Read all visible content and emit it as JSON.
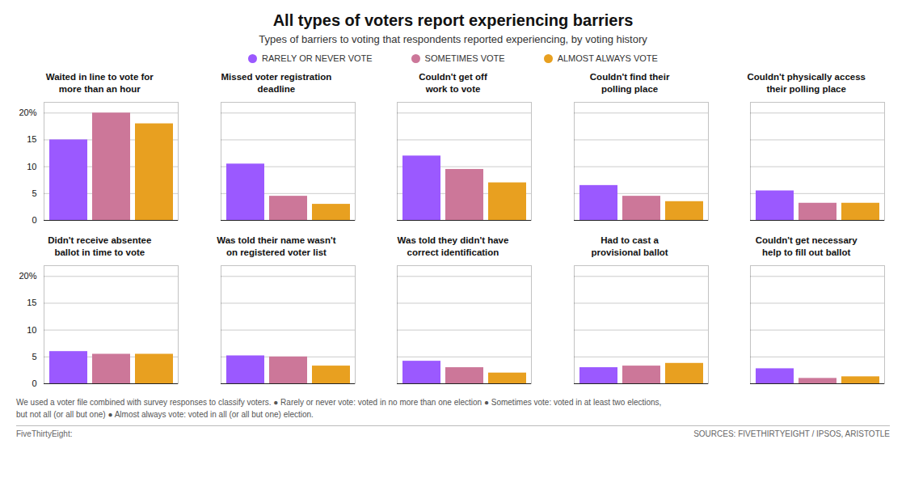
{
  "title": "All types of voters report experiencing barriers",
  "subtitle": "Types of barriers to voting that respondents reported experiencing, by voting history",
  "legend": "top",
  "footnote": [
    "We used a voter file combined with survey responses to classify voters. ● Rarely or never vote: voted in no more than one election ● Sometimes vote: voted in at least two elections,",
    "but not all (or all but one) ● Almost always vote: voted in all (or all but one) election."
  ],
  "sources": [
    "FiveThirtyEight:",
    "SOURCES: FIVETHIRTYEIGHT / IPSOS, ARISTOTLE"
  ],
  "chart_data": [
    {
      "type": "bar",
      "title": "Waited in line to vote for\nmore than an hour",
      "categories": [
        null
      ],
      "series": [
        {
          "name": "RARELY OR NEVER VOTE",
          "color": "#9b59ff",
          "values": [
            15
          ]
        },
        {
          "name": "SOMETIMES VOTE",
          "color": "#cc7799",
          "values": [
            20
          ]
        },
        {
          "name": "ALMOST ALWAYS VOTE",
          "color": "#e8a020",
          "values": [
            18
          ]
        }
      ],
      "ylim": [
        0,
        22
      ],
      "yticks": [
        0,
        5,
        10,
        15,
        {
          "value": 20,
          "label": "20%"
        }
      ],
      "grid": true,
      "tick_labels": "y"
    },
    {
      "type": "bar",
      "title": "Missed voter registration\ndeadline",
      "categories": [
        null
      ],
      "series": [
        {
          "name": "RARELY OR NEVER VOTE",
          "color": "#9b59ff",
          "values": [
            10.5
          ]
        },
        {
          "name": "SOMETIMES VOTE",
          "color": "#cc7799",
          "values": [
            4.5
          ]
        },
        {
          "name": "ALMOST ALWAYS VOTE",
          "color": "#e8a020",
          "values": [
            3
          ]
        }
      ],
      "ylim": [
        0,
        22
      ],
      "yticks": [
        0,
        5,
        10,
        15,
        {
          "value": 20,
          "label": "20%"
        }
      ],
      "grid": true,
      "tick_labels": false
    },
    {
      "type": "bar",
      "title": "Couldn't get off\nwork to vote",
      "categories": [
        null
      ],
      "series": [
        {
          "name": "RARELY OR NEVER VOTE",
          "color": "#9b59ff",
          "values": [
            12
          ]
        },
        {
          "name": "SOMETIMES VOTE",
          "color": "#cc7799",
          "values": [
            9.5
          ]
        },
        {
          "name": "ALMOST ALWAYS VOTE",
          "color": "#e8a020",
          "values": [
            7
          ]
        }
      ],
      "ylim": [
        0,
        22
      ],
      "yticks": [
        0,
        5,
        10,
        15,
        {
          "value": 20,
          "label": "20%"
        }
      ],
      "grid": true,
      "tick_labels": false
    },
    {
      "type": "bar",
      "title": "Couldn't find their\npolling place",
      "categories": [
        null
      ],
      "series": [
        {
          "name": "RARELY OR NEVER VOTE",
          "color": "#9b59ff",
          "values": [
            6.5
          ]
        },
        {
          "name": "SOMETIMES VOTE",
          "color": "#cc7799",
          "values": [
            4.5
          ]
        },
        {
          "name": "ALMOST ALWAYS VOTE",
          "color": "#e8a020",
          "values": [
            3.5
          ]
        }
      ],
      "ylim": [
        0,
        22
      ],
      "yticks": [
        0,
        5,
        10,
        15,
        {
          "value": 20,
          "label": "20%"
        }
      ],
      "grid": true,
      "tick_labels": false
    },
    {
      "type": "bar",
      "title": "Couldn't physically access\ntheir polling place",
      "categories": [
        null
      ],
      "series": [
        {
          "name": "RARELY OR NEVER VOTE",
          "color": "#9b59ff",
          "values": [
            5.5
          ]
        },
        {
          "name": "SOMETIMES VOTE",
          "color": "#cc7799",
          "values": [
            3.2
          ]
        },
        {
          "name": "ALMOST ALWAYS VOTE",
          "color": "#e8a020",
          "values": [
            3.2
          ]
        }
      ],
      "ylim": [
        0,
        22
      ],
      "yticks": [
        0,
        5,
        10,
        15,
        {
          "value": 20,
          "label": "20%"
        }
      ],
      "grid": true,
      "tick_labels": false
    },
    {
      "type": "bar",
      "title": "Didn't receive absentee\nballot in time to vote",
      "categories": [
        null
      ],
      "series": [
        {
          "name": "RARELY OR NEVER VOTE",
          "color": "#9b59ff",
          "values": [
            6
          ]
        },
        {
          "name": "SOMETIMES VOTE",
          "color": "#cc7799",
          "values": [
            5.5
          ]
        },
        {
          "name": "ALMOST ALWAYS VOTE",
          "color": "#e8a020",
          "values": [
            5.5
          ]
        }
      ],
      "ylim": [
        0,
        22
      ],
      "yticks": [
        0,
        5,
        10,
        15,
        {
          "value": 20,
          "label": "20%"
        }
      ],
      "grid": true,
      "tick_labels": "y"
    },
    {
      "type": "bar",
      "title": "Was told their name wasn't\non registered voter list",
      "categories": [
        null
      ],
      "series": [
        {
          "name": "RARELY OR NEVER VOTE",
          "color": "#9b59ff",
          "values": [
            5.2
          ]
        },
        {
          "name": "SOMETIMES VOTE",
          "color": "#cc7799",
          "values": [
            5
          ]
        },
        {
          "name": "ALMOST ALWAYS VOTE",
          "color": "#e8a020",
          "values": [
            3.3
          ]
        }
      ],
      "ylim": [
        0,
        22
      ],
      "yticks": [
        0,
        5,
        10,
        15,
        {
          "value": 20,
          "label": "20%"
        }
      ],
      "grid": true,
      "tick_labels": false
    },
    {
      "type": "bar",
      "title": "Was told they didn't have\ncorrect identification",
      "categories": [
        null
      ],
      "series": [
        {
          "name": "RARELY OR NEVER VOTE",
          "color": "#9b59ff",
          "values": [
            4.2
          ]
        },
        {
          "name": "SOMETIMES VOTE",
          "color": "#cc7799",
          "values": [
            3
          ]
        },
        {
          "name": "ALMOST ALWAYS VOTE",
          "color": "#e8a020",
          "values": [
            2
          ]
        }
      ],
      "ylim": [
        0,
        22
      ],
      "yticks": [
        0,
        5,
        10,
        15,
        {
          "value": 20,
          "label": "20%"
        }
      ],
      "grid": true,
      "tick_labels": false
    },
    {
      "type": "bar",
      "title": "Had to cast a\nprovisional ballot",
      "categories": [
        null
      ],
      "series": [
        {
          "name": "RARELY OR NEVER VOTE",
          "color": "#9b59ff",
          "values": [
            3
          ]
        },
        {
          "name": "SOMETIMES VOTE",
          "color": "#cc7799",
          "values": [
            3.3
          ]
        },
        {
          "name": "ALMOST ALWAYS VOTE",
          "color": "#e8a020",
          "values": [
            3.8
          ]
        }
      ],
      "ylim": [
        0,
        22
      ],
      "yticks": [
        0,
        5,
        10,
        15,
        {
          "value": 20,
          "label": "20%"
        }
      ],
      "grid": true,
      "tick_labels": false
    },
    {
      "type": "bar",
      "title": "Couldn't get necessary\nhelp to fill out ballot",
      "categories": [
        null
      ],
      "series": [
        {
          "name": "RARELY OR NEVER VOTE",
          "color": "#9b59ff",
          "values": [
            2.8
          ]
        },
        {
          "name": "SOMETIMES VOTE",
          "color": "#cc7799",
          "values": [
            1
          ]
        },
        {
          "name": "ALMOST ALWAYS VOTE",
          "color": "#e8a020",
          "values": [
            1.3
          ]
        }
      ],
      "ylim": [
        0,
        22
      ],
      "yticks": [
        0,
        5,
        10,
        15,
        {
          "value": 20,
          "label": "20%"
        }
      ],
      "grid": true,
      "tick_labels": false
    }
  ]
}
